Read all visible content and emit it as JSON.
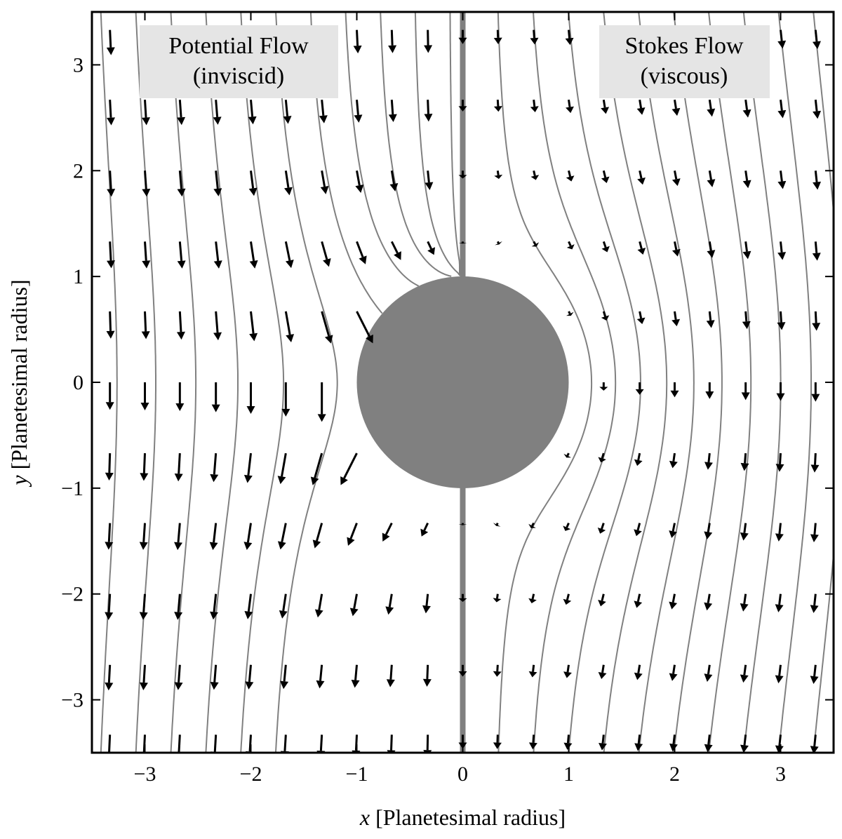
{
  "chart_data": {
    "type": "streamplot-quiver",
    "xlabel_var": "x",
    "xlabel_rest": " [Planetesimal radius]",
    "ylabel_var": "y",
    "ylabel_rest": " [Planetesimal radius]",
    "xlim": [
      -3.5,
      3.5
    ],
    "ylim": [
      -3.5,
      3.5
    ],
    "xticks": [
      -3,
      -2,
      -1,
      0,
      1,
      2,
      3
    ],
    "yticks": [
      -3,
      -2,
      -1,
      0,
      1,
      2,
      3
    ],
    "xtick_labels": [
      "−3",
      "−2",
      "−1",
      "0",
      "1",
      "2",
      "3"
    ],
    "ytick_labels": [
      "−3",
      "−2",
      "−1",
      "0",
      "1",
      "2",
      "3"
    ],
    "grid": false,
    "body": {
      "shape": "circle",
      "center": [
        0,
        0
      ],
      "radius": 1
    },
    "divider_x": 0,
    "free_stream": {
      "direction": "negative y",
      "speed": 1
    },
    "panels": [
      {
        "side": "left",
        "model": "potential",
        "title_line1": "Potential Flow",
        "title_line2": "(inviscid)"
      },
      {
        "side": "right",
        "model": "stokes",
        "title_line1": "Stokes Flow",
        "title_line2": "(viscous)"
      }
    ],
    "streamline_seeds_left": [
      -3.42,
      -3.09,
      -2.76,
      -2.43,
      -2.1,
      -1.77,
      -1.44,
      -1.11,
      -0.78,
      -0.45,
      -0.12
    ],
    "streamline_seeds_right": [
      0.33,
      0.66,
      0.99,
      1.32,
      1.65,
      1.98,
      2.31,
      2.64,
      2.97,
      3.3
    ],
    "quiver_x_left": [
      -3.33,
      -3.0,
      -2.67,
      -2.33,
      -2.0,
      -1.67,
      -1.33,
      -1.0,
      -0.67,
      -0.33
    ],
    "quiver_x_right": [
      0.0,
      0.33,
      0.67,
      1.0,
      1.33,
      1.67,
      2.0,
      2.33,
      2.67,
      3.0,
      3.33
    ],
    "quiver_y": [
      3.33,
      2.67,
      2.0,
      1.33,
      0.67,
      0.0,
      -0.67,
      -1.33,
      -2.0,
      -2.67,
      -3.33
    ],
    "colors": {
      "body": "#808080",
      "streamline": "#808080",
      "arrow": "#000000",
      "panel_box": "#e5e5e5"
    }
  }
}
